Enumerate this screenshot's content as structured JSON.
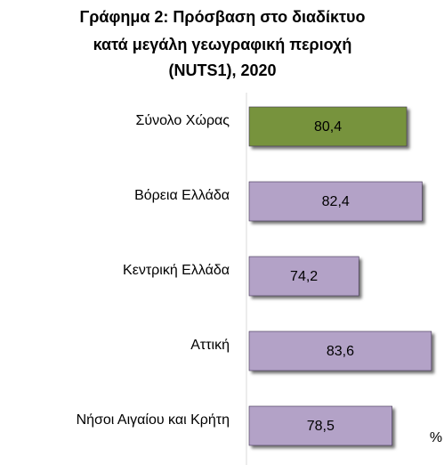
{
  "chart_data": {
    "type": "bar",
    "orientation": "horizontal",
    "title": [
      "Γράφημα 2: Πρόσβαση στο διαδίκτυο",
      "κατά μεγάλη γεωγραφική περιοχή",
      "(NUTS1), 2020"
    ],
    "categories": [
      "Σύνολο Χώρας",
      "Βόρεια Ελλάδα",
      "Κεντρική Ελλάδα",
      "Αττική",
      "Νήσοι Αιγαίου και Κρήτη"
    ],
    "values": [
      80.4,
      82.4,
      74.2,
      83.6,
      78.5
    ],
    "value_labels": [
      "80,4",
      "82,4",
      "74,2",
      "83,6",
      "78,5"
    ],
    "colors": [
      "#77933c",
      "#b3a2c7",
      "#b3a2c7",
      "#b3a2c7",
      "#b3a2c7"
    ],
    "xlim": [
      60,
      85
    ],
    "unit_label": "%"
  }
}
